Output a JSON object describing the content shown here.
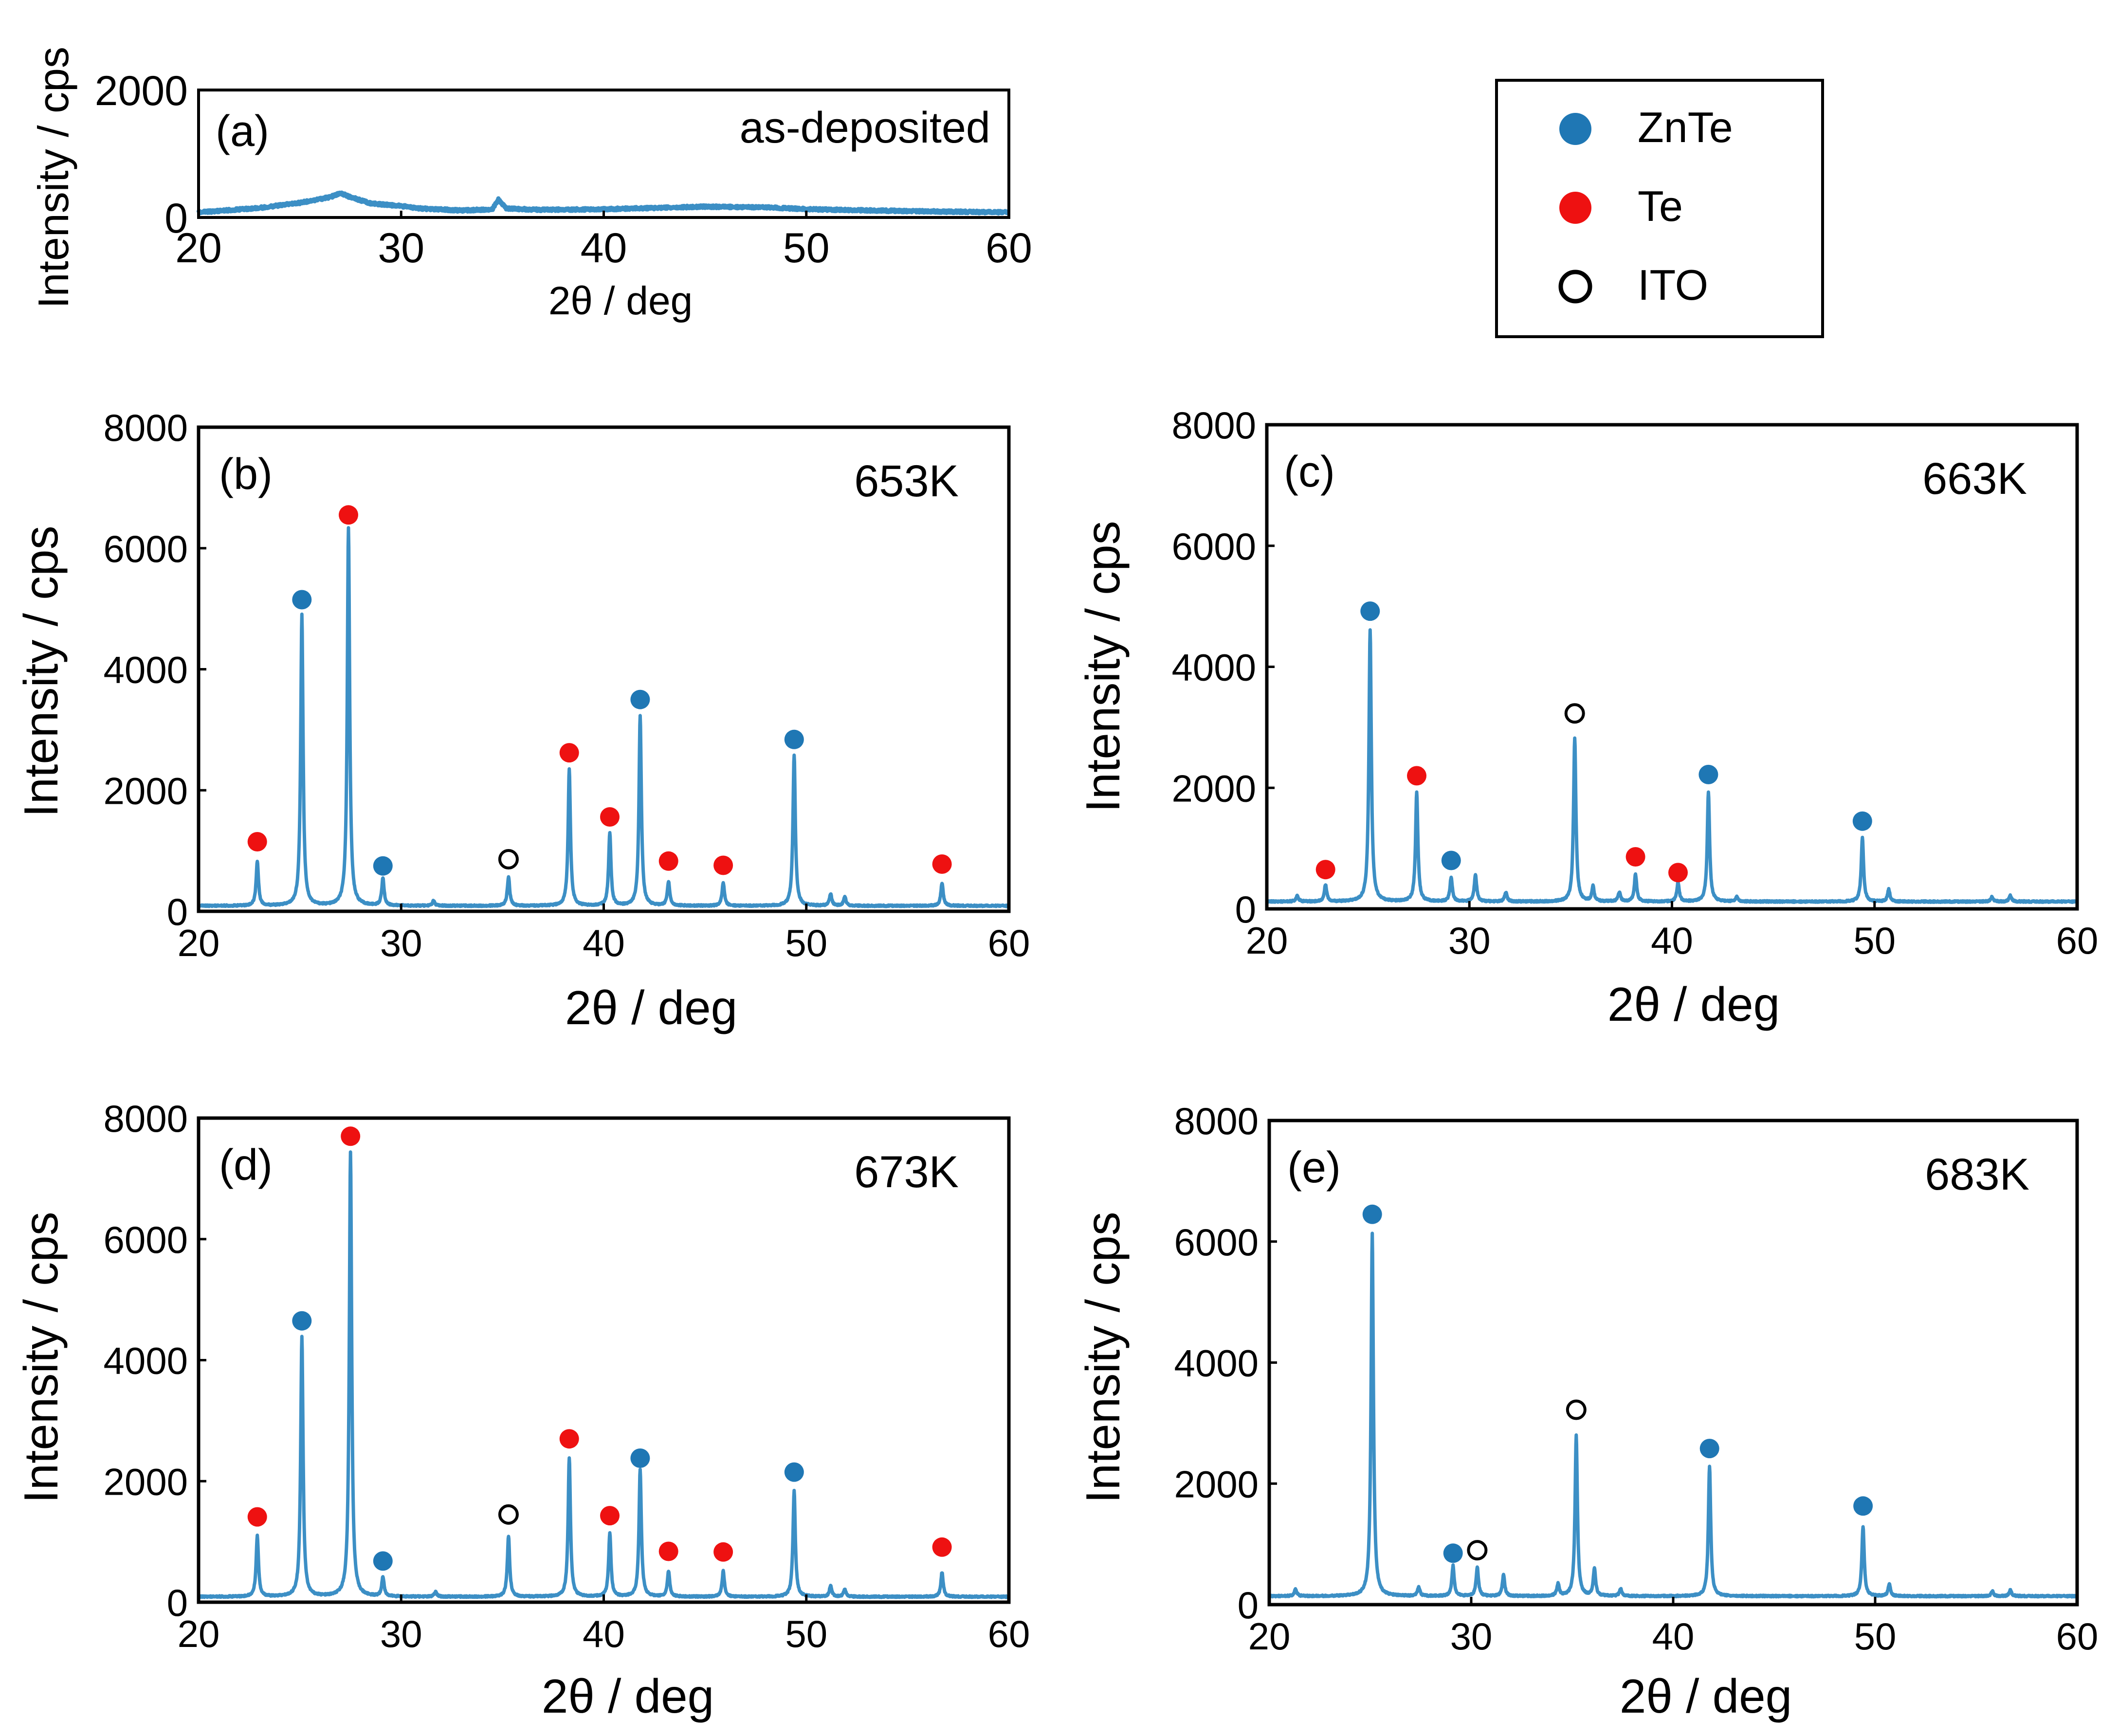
{
  "legend": {
    "items": [
      {
        "label": "ZnTe",
        "marker": "filled",
        "color": "#1f77b4"
      },
      {
        "label": "Te",
        "marker": "filled",
        "color": "#ee1111"
      },
      {
        "label": "ITO",
        "marker": "open",
        "color": "#000000"
      }
    ]
  },
  "colors": {
    "line": "#3c8fc5",
    "znte": "#1f77b4",
    "te": "#ee1111",
    "ito": "#000000"
  },
  "chart_data": [
    {
      "id": "a",
      "type": "line",
      "panel_label": "(a)",
      "annotation": "as-deposited",
      "xlabel": "2θ / deg",
      "ylabel": "Intensity / cps",
      "xlim": [
        20,
        60
      ],
      "ylim": [
        0,
        2000
      ],
      "xticks": [
        "20",
        "30",
        "40",
        "50",
        "60"
      ],
      "yticks": [
        "0",
        "2000"
      ],
      "baseline": [
        [
          20,
          80
        ],
        [
          23,
          150
        ],
        [
          25,
          230
        ],
        [
          26.5,
          320
        ],
        [
          27,
          380
        ],
        [
          27.5,
          320
        ],
        [
          28.5,
          220
        ],
        [
          30,
          180
        ],
        [
          31,
          140
        ],
        [
          33,
          110
        ],
        [
          34.5,
          130
        ],
        [
          34.8,
          280
        ],
        [
          35.2,
          140
        ],
        [
          37,
          120
        ],
        [
          40,
          130
        ],
        [
          45,
          170
        ],
        [
          48,
          160
        ],
        [
          50,
          130
        ],
        [
          55,
          100
        ],
        [
          60,
          80
        ]
      ],
      "peaks": [],
      "markers": []
    },
    {
      "id": "b",
      "type": "line",
      "panel_label": "(b)",
      "annotation": "653K",
      "xlabel": "2θ / deg",
      "ylabel": "Intensity / cps",
      "xlim": [
        20,
        60
      ],
      "ylim": [
        0,
        8000
      ],
      "xticks": [
        "20",
        "30",
        "40",
        "50",
        "60"
      ],
      "yticks": [
        "0",
        "2000",
        "4000",
        "6000",
        "8000"
      ],
      "baseline": [
        [
          20,
          90
        ],
        [
          60,
          90
        ]
      ],
      "peaks": [
        [
          22.9,
          730
        ],
        [
          25.1,
          4800
        ],
        [
          27.4,
          6250
        ],
        [
          29.1,
          450
        ],
        [
          31.6,
          80
        ],
        [
          35.3,
          480
        ],
        [
          38.3,
          2250
        ],
        [
          40.3,
          1200
        ],
        [
          41.8,
          3150
        ],
        [
          43.2,
          400
        ],
        [
          45.9,
          380
        ],
        [
          49.4,
          2500
        ],
        [
          51.2,
          200
        ],
        [
          51.9,
          150
        ],
        [
          56.7,
          380
        ]
      ],
      "markers": [
        [
          22.9,
          1150,
          "te"
        ],
        [
          25.1,
          5150,
          "znte"
        ],
        [
          27.4,
          6550,
          "te"
        ],
        [
          29.1,
          750,
          "znte"
        ],
        [
          35.3,
          860,
          "ito"
        ],
        [
          38.3,
          2620,
          "te"
        ],
        [
          40.3,
          1560,
          "te"
        ],
        [
          41.8,
          3500,
          "znte"
        ],
        [
          43.2,
          830,
          "te"
        ],
        [
          45.9,
          760,
          "te"
        ],
        [
          49.4,
          2840,
          "znte"
        ],
        [
          56.7,
          780,
          "te"
        ]
      ]
    },
    {
      "id": "c",
      "type": "line",
      "panel_label": "(c)",
      "annotation": "663K",
      "xlabel": "2θ / deg",
      "ylabel": "Intensity / cps",
      "xlim": [
        20,
        60
      ],
      "ylim": [
        0,
        8000
      ],
      "xticks": [
        "20",
        "30",
        "40",
        "50",
        "60"
      ],
      "yticks": [
        "0",
        "2000",
        "4000",
        "6000",
        "8000"
      ],
      "baseline": [
        [
          20,
          120
        ],
        [
          60,
          120
        ]
      ],
      "peaks": [
        [
          21.5,
          100
        ],
        [
          22.9,
          280
        ],
        [
          25.1,
          4500
        ],
        [
          27.4,
          1800
        ],
        [
          29.1,
          400
        ],
        [
          30.3,
          450
        ],
        [
          31.8,
          150
        ],
        [
          35.2,
          2700
        ],
        [
          36.1,
          250
        ],
        [
          37.4,
          150
        ],
        [
          38.2,
          450
        ],
        [
          40.3,
          320
        ],
        [
          41.8,
          1800
        ],
        [
          43.2,
          80
        ],
        [
          49.4,
          1050
        ],
        [
          50.7,
          200
        ],
        [
          55.8,
          80
        ],
        [
          56.7,
          100
        ]
      ],
      "markers": [
        [
          22.9,
          650,
          "te"
        ],
        [
          25.1,
          4920,
          "znte"
        ],
        [
          27.4,
          2200,
          "te"
        ],
        [
          29.1,
          800,
          "znte"
        ],
        [
          35.2,
          3230,
          "ito"
        ],
        [
          38.2,
          860,
          "te"
        ],
        [
          40.3,
          600,
          "te"
        ],
        [
          41.8,
          2220,
          "znte"
        ],
        [
          49.4,
          1450,
          "znte"
        ]
      ]
    },
    {
      "id": "d",
      "type": "line",
      "panel_label": "(d)",
      "annotation": "673K",
      "xlabel": "2θ / deg",
      "ylabel": "Intensity / cps",
      "xlim": [
        20,
        60
      ],
      "ylim": [
        0,
        8000
      ],
      "xticks": [
        "20",
        "30",
        "40",
        "50",
        "60"
      ],
      "yticks": [
        "0",
        "2000",
        "4000",
        "6000",
        "8000"
      ],
      "baseline": [
        [
          20,
          90
        ],
        [
          60,
          90
        ]
      ],
      "peaks": [
        [
          22.9,
          1000
        ],
        [
          25.1,
          4300
        ],
        [
          27.5,
          7350
        ],
        [
          29.1,
          320
        ],
        [
          31.7,
          80
        ],
        [
          35.3,
          1000
        ],
        [
          38.3,
          2300
        ],
        [
          40.3,
          1050
        ],
        [
          41.8,
          2100
        ],
        [
          43.2,
          420
        ],
        [
          45.9,
          420
        ],
        [
          49.4,
          1750
        ],
        [
          51.2,
          180
        ],
        [
          51.9,
          130
        ],
        [
          56.7,
          400
        ]
      ],
      "markers": [
        [
          22.9,
          1410,
          "te"
        ],
        [
          25.1,
          4650,
          "znte"
        ],
        [
          27.5,
          7700,
          "te"
        ],
        [
          29.1,
          680,
          "znte"
        ],
        [
          35.3,
          1450,
          "ito"
        ],
        [
          38.3,
          2700,
          "te"
        ],
        [
          40.3,
          1430,
          "te"
        ],
        [
          41.8,
          2380,
          "znte"
        ],
        [
          43.2,
          840,
          "te"
        ],
        [
          45.9,
          830,
          "te"
        ],
        [
          49.4,
          2150,
          "znte"
        ],
        [
          56.7,
          910,
          "te"
        ]
      ]
    },
    {
      "id": "e",
      "type": "line",
      "panel_label": "(e)",
      "annotation": "683K",
      "xlabel": "2θ / deg",
      "ylabel": "Intensity / cps",
      "xlim": [
        20,
        60
      ],
      "ylim": [
        0,
        8000
      ],
      "xticks": [
        "20",
        "30",
        "40",
        "50",
        "60"
      ],
      "yticks": [
        "0",
        "2000",
        "4000",
        "6000",
        "8000"
      ],
      "baseline": [
        [
          20,
          140
        ],
        [
          60,
          140
        ]
      ],
      "peaks": [
        [
          21.3,
          120
        ],
        [
          25.1,
          6000
        ],
        [
          27.4,
          150
        ],
        [
          29.1,
          500
        ],
        [
          30.3,
          480
        ],
        [
          31.6,
          350
        ],
        [
          34.3,
          200
        ],
        [
          35.2,
          2650
        ],
        [
          36.1,
          450
        ],
        [
          37.4,
          120
        ],
        [
          41.8,
          2150
        ],
        [
          49.4,
          1150
        ],
        [
          50.7,
          200
        ],
        [
          55.8,
          80
        ],
        [
          56.7,
          100
        ]
      ],
      "markers": [
        [
          25.1,
          6450,
          "znte"
        ],
        [
          29.1,
          850,
          "znte"
        ],
        [
          30.3,
          900,
          "ito"
        ],
        [
          35.2,
          3220,
          "ito"
        ],
        [
          41.8,
          2580,
          "znte"
        ],
        [
          49.4,
          1630,
          "znte"
        ]
      ]
    }
  ]
}
